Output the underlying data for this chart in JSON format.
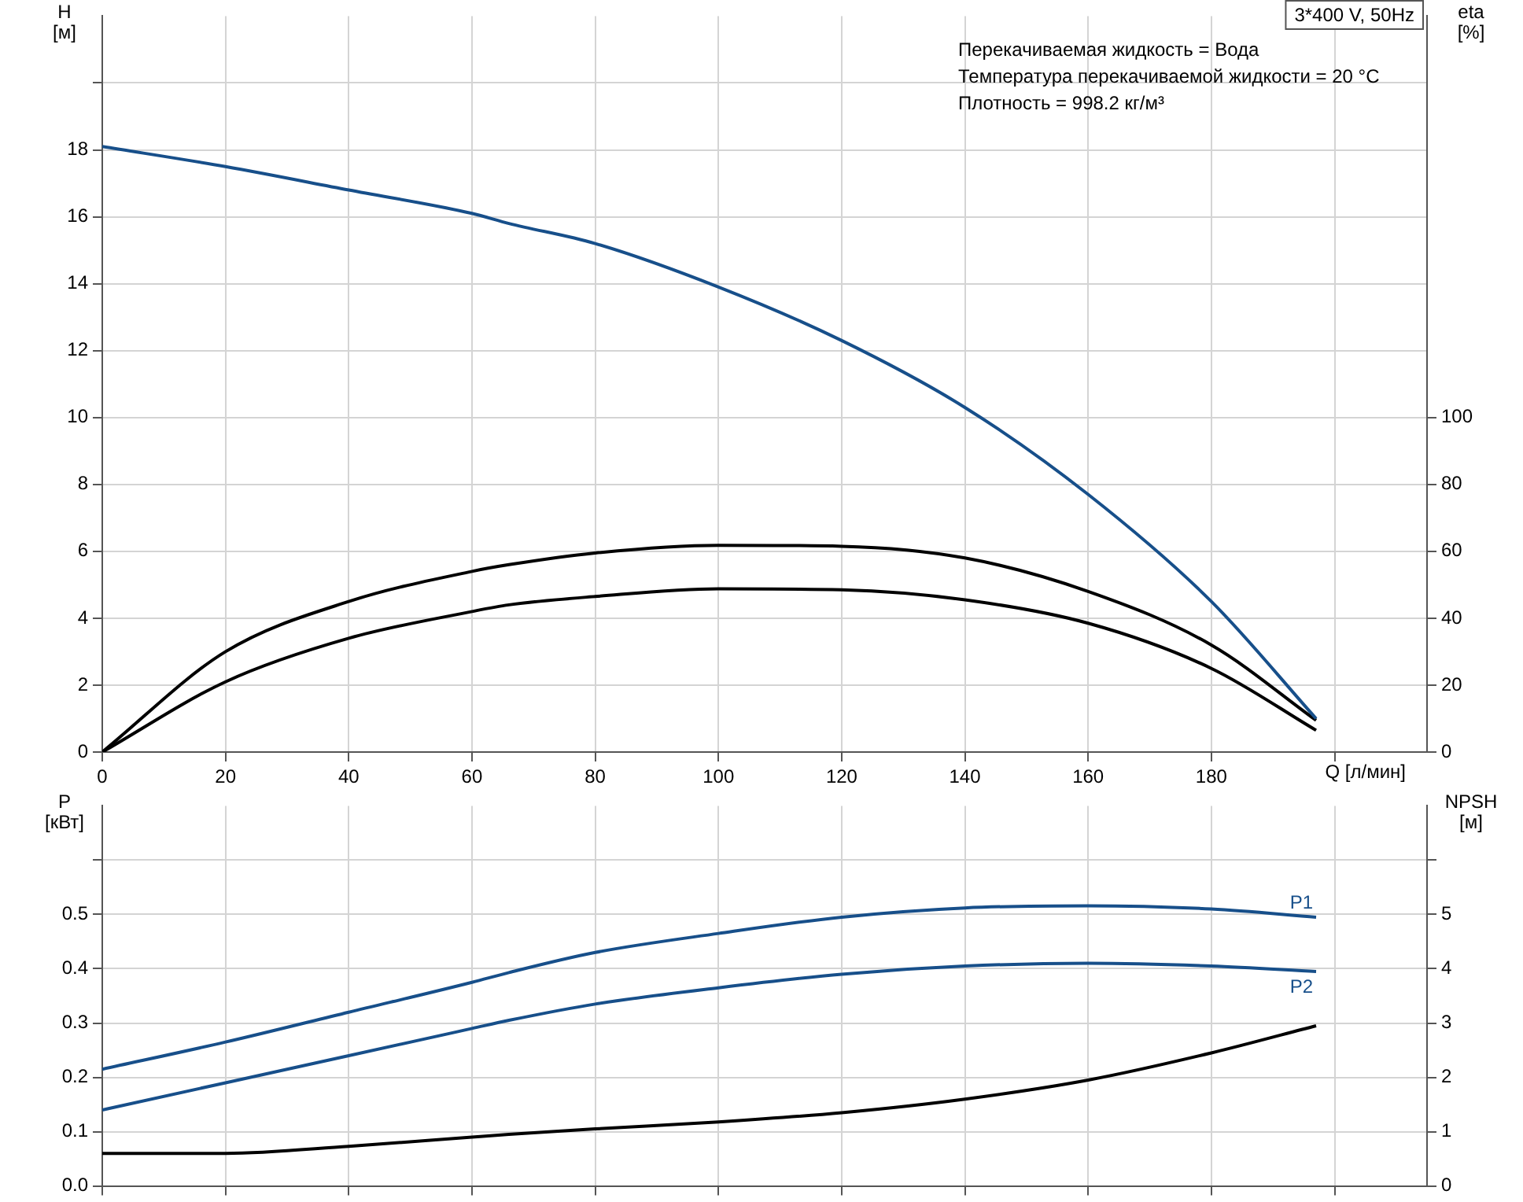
{
  "chart_data": [
    {
      "type": "line",
      "ylabel": "H [м]",
      "y2label": "eta [%]",
      "xlabel": "Q [л/мин]",
      "x": [
        0,
        20,
        40,
        60,
        66,
        80,
        100,
        120,
        140,
        160,
        180,
        197
      ],
      "series": [
        {
          "color": "#174f8a",
          "values": [
            18.1,
            17.5,
            16.8,
            16.1,
            15.8,
            15.2,
            13.9,
            12.3,
            10.3,
            7.7,
            4.5,
            1.0
          ]
        },
        {
          "color": "#000000",
          "axis": "y2",
          "values": [
            0,
            30,
            45,
            54,
            56,
            59.5,
            61.8,
            61.5,
            58,
            48,
            32,
            9.5
          ]
        },
        {
          "color": "#000000",
          "axis": "y2",
          "values": [
            0,
            21,
            34,
            42,
            44,
            46.5,
            48.8,
            48.5,
            45.5,
            38.5,
            25,
            6.5
          ]
        }
      ],
      "xlim": [
        0,
        215
      ],
      "xticks": [
        0,
        20,
        40,
        60,
        80,
        100,
        120,
        140,
        160,
        180,
        {
          "value": 200,
          "label": null
        }
      ],
      "ylim": [
        0,
        22
      ],
      "yticks": [
        0,
        2,
        4,
        6,
        8,
        10,
        12,
        14,
        16,
        18,
        {
          "value": 20,
          "label": null
        }
      ],
      "y2lim": [
        0,
        220
      ],
      "y2ticks": [
        0,
        20,
        40,
        60,
        80,
        100
      ],
      "grid": true,
      "legend": false,
      "marker": "none",
      "annotations": [
        "3*400 V, 50Hz",
        "Перекачиваемая жидкость = Вода",
        "Температура перекачиваемой жидкости = 20 °C",
        "Плотность = 998.2 кг/м³"
      ]
    },
    {
      "type": "line",
      "ylabel": "P [кВт]",
      "y2label": "NPSH [м]",
      "x": [
        0,
        20,
        40,
        60,
        66,
        80,
        100,
        120,
        140,
        160,
        180,
        197
      ],
      "series": [
        {
          "name": "P1",
          "color": "#174f8a",
          "values": [
            0.215,
            0.265,
            0.32,
            0.375,
            0.393,
            0.43,
            0.465,
            0.495,
            0.512,
            0.516,
            0.51,
            0.495
          ]
        },
        {
          "name": "P2",
          "color": "#174f8a",
          "values": [
            0.14,
            0.19,
            0.24,
            0.29,
            0.305,
            0.335,
            0.365,
            0.39,
            0.405,
            0.41,
            0.405,
            0.395
          ]
        },
        {
          "color": "#000000",
          "axis": "y2",
          "values": [
            0.6,
            0.6,
            0.73,
            0.9,
            0.95,
            1.05,
            1.18,
            1.35,
            1.6,
            1.95,
            2.45,
            2.95
          ]
        }
      ],
      "xlim": [
        0,
        215
      ],
      "xticks": [
        {
          "value": 0,
          "label": null
        },
        {
          "value": 20,
          "label": null
        },
        {
          "value": 40,
          "label": null
        },
        {
          "value": 60,
          "label": null
        },
        {
          "value": 80,
          "label": null
        },
        {
          "value": 100,
          "label": null
        },
        {
          "value": 120,
          "label": null
        },
        {
          "value": 140,
          "label": null
        },
        {
          "value": 160,
          "label": null
        },
        {
          "value": 180,
          "label": null
        },
        {
          "value": 200,
          "label": null
        }
      ],
      "ylim": [
        0,
        0.7
      ],
      "yticks": [
        {
          "value": 0,
          "label": "0.0"
        },
        0.1,
        0.2,
        0.3,
        0.4,
        0.5,
        {
          "value": 0.6,
          "label": null
        }
      ],
      "y2lim": [
        0,
        7
      ],
      "y2ticks": [
        0,
        1,
        2,
        3,
        4,
        5,
        {
          "value": 6,
          "label": null
        }
      ],
      "grid": true,
      "legend": false,
      "marker": "none",
      "tick_labels": "y"
    }
  ]
}
